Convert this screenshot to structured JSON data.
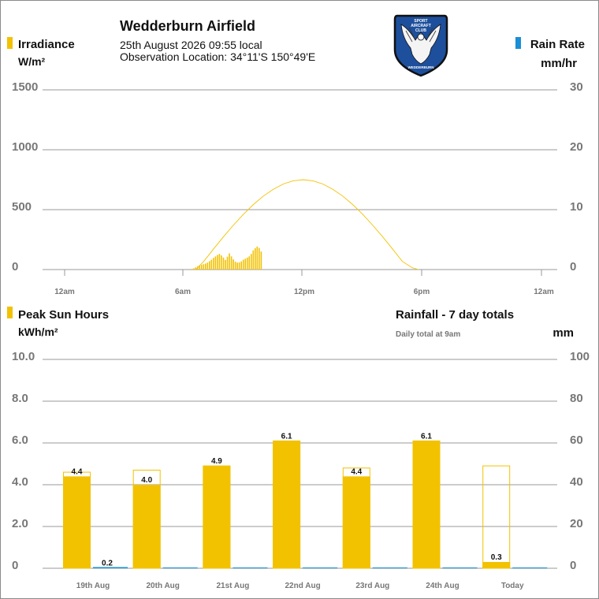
{
  "header": {
    "title": "Wedderburn Airfield",
    "datetime": "25th August 2026  09:55 local",
    "location": "Observation Location: 34°11'S 150°49'E",
    "logo": {
      "top_text": "SPORT",
      "mid_text_1": "AIRCRAFT",
      "mid_text_2": "CLUB",
      "bottom_text": "WEDDERBURN"
    }
  },
  "colors": {
    "irradiance": "#f2c200",
    "rain": "#1a8fd6",
    "grid": "#9a9a9a",
    "axis_text": "#777777",
    "label_text": "#111111",
    "logo_blue": "#1d4f9c"
  },
  "top_chart": {
    "left_legend": "Irradiance",
    "left_unit": "W/m²",
    "right_legend": "Rain Rate",
    "right_unit": "mm/hr",
    "left_ticks": [
      "1500",
      "1000",
      "500",
      "0"
    ],
    "right_ticks": [
      "30",
      "20",
      "10",
      "0"
    ],
    "x_ticks": [
      "12am",
      "6am",
      "12pm",
      "6pm",
      "12am"
    ]
  },
  "bottom_chart": {
    "left_legend": "Peak Sun Hours",
    "left_unit": "kWh/m²",
    "right_title": "Rainfall - 7 day totals",
    "right_note": "Daily total at 9am",
    "right_unit": "mm",
    "left_ticks": [
      "10.0",
      "8.0",
      "6.0",
      "4.0",
      "2.0",
      "0"
    ],
    "right_ticks": [
      "100",
      "80",
      "60",
      "40",
      "20",
      "0"
    ]
  },
  "chart_data": [
    {
      "type": "bar",
      "x_unit": "hour of day",
      "xlim": [
        0,
        24
      ],
      "ylim": [
        0,
        1500
      ],
      "y2lim": [
        0,
        30
      ],
      "series": [
        {
          "name": "Irradiance",
          "kind": "bar",
          "x": [
            6.4,
            6.5,
            6.6,
            6.7,
            6.8,
            6.9,
            7.0,
            7.1,
            7.2,
            7.3,
            7.4,
            7.5,
            7.6,
            7.7,
            7.8,
            7.9,
            8.0,
            8.1,
            8.2,
            8.3,
            8.4,
            8.5,
            8.6,
            8.7,
            8.8,
            8.9,
            9.0,
            9.1,
            9.2,
            9.3,
            9.4,
            9.5,
            9.6,
            9.7,
            9.8,
            9.9
          ],
          "values": [
            5,
            10,
            18,
            26,
            34,
            40,
            45,
            50,
            58,
            70,
            82,
            98,
            110,
            122,
            130,
            118,
            100,
            80,
            108,
            135,
            110,
            85,
            66,
            58,
            60,
            68,
            82,
            90,
            100,
            110,
            130,
            160,
            178,
            192,
            180,
            150
          ]
        },
        {
          "name": "Clear sky",
          "kind": "line",
          "x": [
            6.6,
            7.0,
            7.5,
            8.0,
            8.5,
            9.0,
            9.5,
            10.0,
            10.5,
            11.0,
            11.5,
            12.0,
            12.5,
            13.0,
            13.5,
            14.0,
            14.5,
            15.0,
            15.5,
            16.0,
            16.5,
            17.0,
            17.5,
            17.8
          ],
          "values": [
            0,
            68,
            173,
            275,
            372,
            462,
            543,
            613,
            670,
            714,
            741,
            750,
            741,
            714,
            670,
            613,
            543,
            462,
            372,
            275,
            173,
            68,
            15,
            0
          ]
        },
        {
          "name": "Rain Rate",
          "kind": "bar",
          "axis": "right",
          "x": [],
          "values": []
        }
      ]
    },
    {
      "type": "bar",
      "categories": [
        "19th Aug",
        "20th Aug",
        "21st Aug",
        "22nd Aug",
        "23rd Aug",
        "24th Aug",
        "Today"
      ],
      "ylim": [
        0,
        10
      ],
      "y2lim": [
        0,
        100
      ],
      "series": [
        {
          "name": "Peak Sun Hours",
          "values": [
            4.4,
            4.0,
            4.9,
            6.1,
            4.4,
            6.1,
            0.3
          ],
          "labels": [
            "4.4",
            "4.0",
            "4.9",
            "6.1",
            "4.4",
            "6.1",
            "0.3"
          ]
        },
        {
          "name": "Clear sky potential",
          "values": [
            4.6,
            4.7,
            4.9,
            6.1,
            4.8,
            6.1,
            4.9
          ]
        },
        {
          "name": "Rainfall",
          "axis": "right",
          "values": [
            0.2,
            0,
            0,
            0,
            0,
            0,
            0
          ],
          "labels": [
            "0.2",
            "",
            "",
            "",
            "",
            "",
            ""
          ]
        }
      ]
    }
  ]
}
